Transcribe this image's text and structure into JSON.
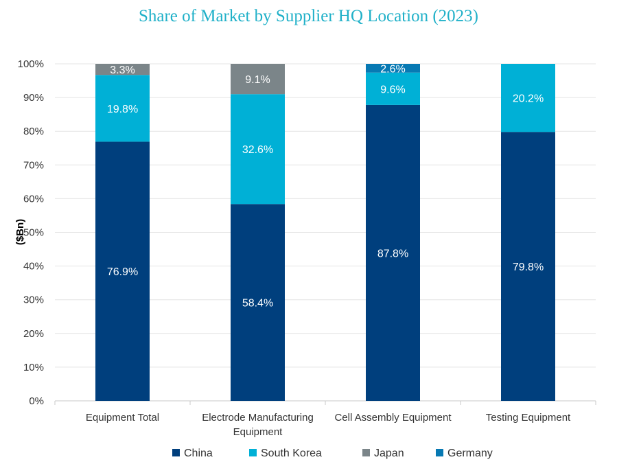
{
  "chart_data": {
    "type": "bar",
    "stacked": true,
    "title": "Share of Market by Supplier HQ Location (2023)",
    "ylabel": "($Bn)",
    "xlabel": "",
    "ylim": [
      0,
      100
    ],
    "yticks": [
      "0%",
      "10%",
      "20%",
      "30%",
      "40%",
      "50%",
      "60%",
      "70%",
      "80%",
      "90%",
      "100%"
    ],
    "categories": [
      "Equipment Total",
      "Electrode Manufacturing Equipment",
      "Cell Assembly Equipment",
      "Testing Equipment"
    ],
    "series": [
      {
        "name": "China",
        "color": "#003f7d",
        "values": [
          76.9,
          58.4,
          87.8,
          79.8
        ],
        "labels": [
          "76.9%",
          "58.4%",
          "87.8%",
          "79.8%"
        ]
      },
      {
        "name": "South Korea",
        "color": "#00b0d6",
        "values": [
          19.8,
          32.6,
          9.6,
          20.2
        ],
        "labels": [
          "19.8%",
          "32.6%",
          "9.6%",
          "20.2%"
        ]
      },
      {
        "name": "Japan",
        "color": "#7b8589",
        "values": [
          3.3,
          9.1,
          0,
          0
        ],
        "labels": [
          "3.3%",
          "9.1%",
          "",
          ""
        ]
      },
      {
        "name": "Germany",
        "color": "#0779b3",
        "values": [
          0,
          0,
          2.6,
          0
        ],
        "labels": [
          "",
          "",
          "2.6%",
          ""
        ]
      }
    ],
    "grid": true,
    "legend_position": "bottom"
  }
}
